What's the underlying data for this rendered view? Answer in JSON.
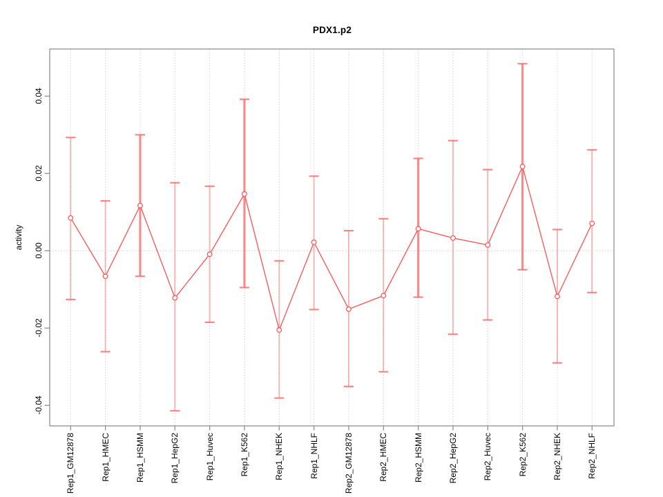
{
  "chart_data": {
    "type": "line",
    "subtype": "points-with-error-bars",
    "title": "PDX1.p2",
    "xlabel": "",
    "ylabel": "activity",
    "legend": "none",
    "grid": "dotted vertical gridline at each category; dotted horizontal line at y=0",
    "marker": "open-circle",
    "categories": [
      "Rep1_GM12878",
      "Rep1_HMEC",
      "Rep1_HSMM",
      "Rep1_HepG2",
      "Rep1_Huvec",
      "Rep1_K562",
      "Rep1_NHEK",
      "Rep1_NHLF",
      "Rep2_GM12878",
      "Rep2_HMEC",
      "Rep2_HSMM",
      "Rep2_HepG2",
      "Rep2_Huvec",
      "Rep2_K562",
      "Rep2_NHEK",
      "Rep2_NHLF"
    ],
    "series": [
      {
        "name": "activity",
        "means": [
          0.0085,
          -0.0066,
          0.0117,
          -0.0122,
          -0.0009,
          0.0147,
          -0.0205,
          0.0022,
          -0.0151,
          -0.0116,
          0.0057,
          0.0033,
          0.0015,
          0.0218,
          -0.0118,
          0.0071
        ],
        "upper": [
          0.0293,
          0.0129,
          0.03,
          0.0176,
          0.0167,
          0.0392,
          -0.0026,
          0.0193,
          0.0052,
          0.0083,
          0.0239,
          0.0285,
          0.021,
          0.0484,
          0.0055,
          0.0261
        ],
        "lower": [
          -0.0126,
          -0.0261,
          -0.0066,
          -0.0414,
          -0.0185,
          -0.0095,
          -0.0381,
          -0.0152,
          -0.0351,
          -0.0313,
          -0.012,
          -0.0216,
          -0.0179,
          -0.0049,
          -0.029,
          -0.0108
        ]
      }
    ],
    "yticks": {
      "values": [
        -0.04,
        -0.02,
        0,
        0.02,
        0.04
      ],
      "labels": [
        "-0.04",
        "-0.02",
        "0.00",
        "0.02",
        "0.04"
      ]
    },
    "ylim": [
      -0.0453,
      0.0522
    ],
    "colors": {
      "line": "#f75c5c",
      "point_stroke": "#f75c5c",
      "error_bar": "#f87070",
      "gridline": "#d4d4d4",
      "zero_line": "#cfcfcf",
      "box": "#8f8f8f",
      "text": "#000000"
    }
  }
}
